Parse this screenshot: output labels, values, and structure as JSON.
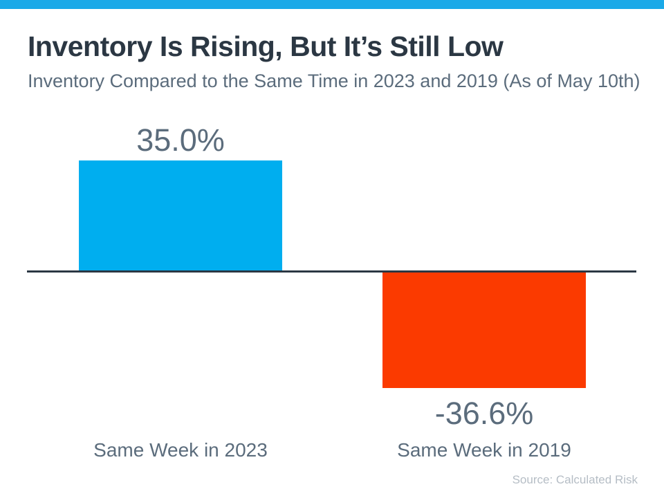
{
  "page": {
    "title": "Inventory Is Rising, But It’s Still Low",
    "subtitle": "Inventory Compared to the Same Time in 2023 and 2019 (As of May 10th)",
    "source": "Source: Calculated Risk"
  },
  "colors": {
    "top_accent_bar": "#1AA9E8",
    "positive_bar": "#00AEEF",
    "negative_bar": "#FB3A00",
    "title_text": "#2B3743",
    "label_text": "#5B6C7C",
    "source_text": "#B5BDC5",
    "axis_line": "#2B3743",
    "background": "#FFFFFF"
  },
  "chart_data": {
    "type": "bar",
    "title": "Inventory Is Rising, But It’s Still Low",
    "subtitle": "Inventory Compared to the Same Time in 2023 and 2019 (As of May 10th)",
    "categories": [
      "Same Week in 2023",
      "Same Week in 2019"
    ],
    "values": [
      35.0,
      -36.6
    ],
    "value_labels": [
      "35.0%",
      "-36.6%"
    ],
    "bar_colors": [
      "#00AEEF",
      "#FB3A00"
    ],
    "xlabel": "",
    "ylabel": "",
    "ylim": [
      -40,
      40
    ],
    "grid": false,
    "legend": false,
    "baseline": 0,
    "source": "Source: Calculated Risk"
  }
}
